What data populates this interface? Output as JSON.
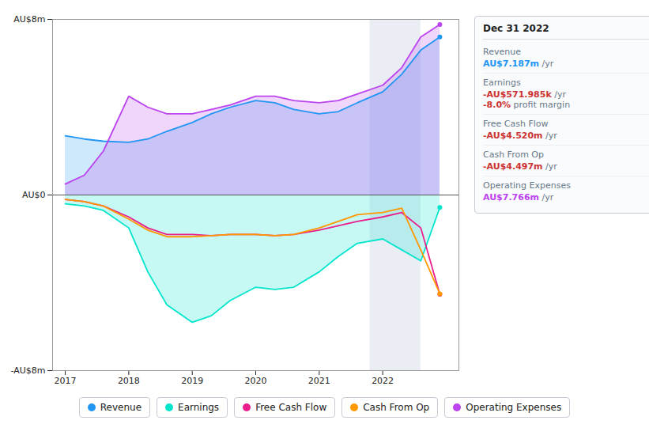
{
  "chart_data": {
    "type": "line",
    "x": [
      2017.0,
      2017.3,
      2017.6,
      2018.0,
      2018.3,
      2018.6,
      2019.0,
      2019.3,
      2019.6,
      2020.0,
      2020.3,
      2020.6,
      2021.0,
      2021.3,
      2021.6,
      2022.0,
      2022.3,
      2022.6,
      2022.9
    ],
    "xlim": [
      2016.8,
      2023.2
    ],
    "xticks": [
      2017,
      2018,
      2019,
      2020,
      2021,
      2022
    ],
    "ylim": [
      -8,
      8
    ],
    "yticks": [
      {
        "value": -8,
        "label": "-AU$8m"
      },
      {
        "value": 0,
        "label": "AU$0"
      },
      {
        "value": 8,
        "label": "AU$8m"
      }
    ],
    "grid": true,
    "legend": "bottom",
    "series": [
      {
        "name": "Revenue",
        "color": "#2196f3",
        "type": "area",
        "values": [
          2.7,
          2.55,
          2.45,
          2.4,
          2.55,
          2.9,
          3.3,
          3.7,
          4.0,
          4.3,
          4.2,
          3.9,
          3.7,
          3.8,
          4.2,
          4.7,
          5.5,
          6.6,
          7.2
        ]
      },
      {
        "name": "Earnings",
        "color": "#00e5cc",
        "type": "area",
        "values": [
          -0.4,
          -0.5,
          -0.7,
          -1.5,
          -3.5,
          -5.0,
          -5.8,
          -5.5,
          -4.8,
          -4.2,
          -4.3,
          -4.2,
          -3.5,
          -2.8,
          -2.2,
          -2.0,
          -2.5,
          -3.0,
          -0.57
        ]
      },
      {
        "name": "Free Cash Flow",
        "color": "#e91e8c",
        "values": [
          -0.2,
          -0.3,
          -0.5,
          -1.0,
          -1.5,
          -1.8,
          -1.8,
          -1.85,
          -1.8,
          -1.8,
          -1.85,
          -1.8,
          -1.6,
          -1.4,
          -1.2,
          -1.0,
          -0.8,
          -1.5,
          -4.52
        ]
      },
      {
        "name": "Cash From Op",
        "color": "#ff9800",
        "values": [
          -0.2,
          -0.3,
          -0.5,
          -1.1,
          -1.6,
          -1.9,
          -1.9,
          -1.85,
          -1.8,
          -1.8,
          -1.85,
          -1.8,
          -1.5,
          -1.2,
          -0.9,
          -0.8,
          -0.6,
          -2.5,
          -4.5
        ]
      },
      {
        "name": "Operating Expenses",
        "color": "#bb44ee",
        "type": "area",
        "values": [
          0.5,
          0.9,
          2.0,
          4.5,
          4.0,
          3.7,
          3.7,
          3.9,
          4.1,
          4.5,
          4.5,
          4.3,
          4.2,
          4.3,
          4.6,
          5.0,
          5.8,
          7.2,
          7.77
        ]
      }
    ],
    "annotations": [
      {
        "title": "Dec 31 2022",
        "x": [
          2021.8,
          2022.6
        ],
        "rows": [
          {
            "label": "Revenue",
            "text": "AU$7.187m",
            "unit": "/yr",
            "color": "#2196f3"
          },
          {
            "label": "Earnings",
            "text": "-AU$571.985k",
            "unit": "/yr",
            "color": "#cc3333",
            "sub_text": "-8.0%",
            "sub_unit": " profit margin"
          },
          {
            "label": "Free Cash Flow",
            "text": "-AU$4.520m",
            "unit": "/yr",
            "color": "#cc3333"
          },
          {
            "label": "Cash From Op",
            "text": "-AU$4.497m",
            "unit": "/yr",
            "color": "#cc3333"
          },
          {
            "label": "Operating Expenses",
            "text": "AU$7.766m",
            "unit": "/yr",
            "color": "#bb44ee"
          }
        ]
      }
    ]
  }
}
